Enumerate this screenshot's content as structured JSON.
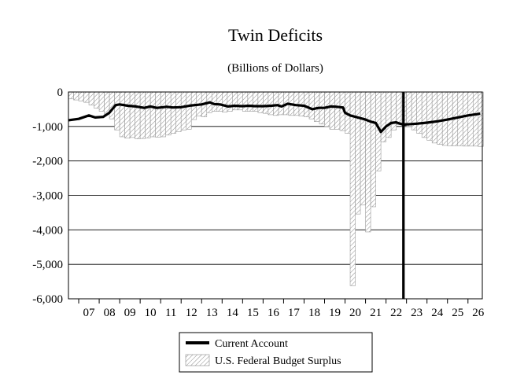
{
  "chart_data": {
    "type": "bar",
    "title": "Twin Deficits",
    "subtitle": "(Billions of Dollars)",
    "xlabel": "",
    "ylabel": "",
    "ylim": [
      -6000,
      0
    ],
    "yticks": [
      0,
      -1000,
      -2000,
      -3000,
      -4000,
      -5000,
      -6000
    ],
    "ytick_labels": [
      "0",
      "-1,000",
      "-2,000",
      "-3,000",
      "-4,000",
      "-5,000",
      "-6,000"
    ],
    "xlim": [
      2006.5,
      2026.7
    ],
    "xtick_labels": [
      "07",
      "08",
      "09",
      "10",
      "11",
      "12",
      "13",
      "14",
      "15",
      "16",
      "17",
      "18",
      "19",
      "20",
      "21",
      "22",
      "23",
      "24",
      "25",
      "26"
    ],
    "grid": true,
    "legend_position": "bottom-center",
    "annotations": [
      {
        "type": "vertical-line",
        "x": 2022.85
      }
    ],
    "series": [
      {
        "name": "Current Account",
        "style": "line",
        "color": "#000000",
        "x": [
          2006.5,
          2007.0,
          2007.5,
          2007.8,
          2008.2,
          2008.5,
          2008.8,
          2009.0,
          2009.4,
          2009.8,
          2010.2,
          2010.5,
          2010.8,
          2011.0,
          2011.3,
          2011.6,
          2012.0,
          2012.5,
          2013.0,
          2013.4,
          2013.6,
          2013.9,
          2014.3,
          2014.6,
          2015.0,
          2015.3,
          2015.6,
          2016.0,
          2016.4,
          2016.7,
          2016.9,
          2017.2,
          2017.6,
          2018.0,
          2018.4,
          2018.7,
          2019.0,
          2019.3,
          2019.6,
          2019.9,
          2020.0,
          2020.25,
          2020.5,
          2020.75,
          2021.0,
          2021.25,
          2021.5,
          2021.75,
          2022.0,
          2022.25,
          2022.5,
          2022.85,
          2023.0,
          2023.5,
          2024.0,
          2024.5,
          2025.0,
          2025.5,
          2026.0,
          2026.6
        ],
        "values": [
          -820,
          -780,
          -680,
          -740,
          -720,
          -600,
          -380,
          -360,
          -400,
          -420,
          -460,
          -420,
          -460,
          -450,
          -430,
          -450,
          -440,
          -390,
          -360,
          -300,
          -350,
          -360,
          -420,
          -400,
          -410,
          -400,
          -410,
          -410,
          -400,
          -380,
          -420,
          -340,
          -380,
          -400,
          -500,
          -460,
          -460,
          -420,
          -430,
          -450,
          -600,
          -680,
          -720,
          -760,
          -800,
          -860,
          -900,
          -1160,
          -1000,
          -900,
          -880,
          -950,
          -940,
          -920,
          -890,
          -850,
          -800,
          -740,
          -680,
          -630
        ]
      },
      {
        "name": "U.S. Federal Budget Surplus",
        "style": "hatched-bar",
        "color": "#9a9a9a",
        "x": [
          2006.5,
          2006.75,
          2007.0,
          2007.25,
          2007.5,
          2007.75,
          2008.0,
          2008.25,
          2008.5,
          2008.75,
          2009.0,
          2009.25,
          2009.5,
          2009.75,
          2010.0,
          2010.25,
          2010.5,
          2010.75,
          2011.0,
          2011.25,
          2011.5,
          2011.75,
          2012.0,
          2012.25,
          2012.5,
          2012.75,
          2013.0,
          2013.25,
          2013.5,
          2013.75,
          2014.0,
          2014.25,
          2014.5,
          2014.75,
          2015.0,
          2015.25,
          2015.5,
          2015.75,
          2016.0,
          2016.25,
          2016.5,
          2016.75,
          2017.0,
          2017.25,
          2017.5,
          2017.75,
          2018.0,
          2018.25,
          2018.5,
          2018.75,
          2019.0,
          2019.25,
          2019.5,
          2019.75,
          2020.0,
          2020.25,
          2020.5,
          2020.75,
          2021.0,
          2021.25,
          2021.5,
          2021.75,
          2022.0,
          2022.25,
          2022.5,
          2022.75,
          2023.0,
          2023.25,
          2023.5,
          2023.75,
          2024.0,
          2024.25,
          2024.5,
          2024.75,
          2025.0,
          2025.25,
          2025.5,
          2025.75,
          2026.0,
          2026.25,
          2026.5
        ],
        "values": [
          -200,
          -230,
          -260,
          -300,
          -380,
          -470,
          -560,
          -650,
          -780,
          -1100,
          -1300,
          -1340,
          -1320,
          -1360,
          -1350,
          -1330,
          -1300,
          -1310,
          -1300,
          -1250,
          -1200,
          -1150,
          -1100,
          -1080,
          -800,
          -700,
          -720,
          -600,
          -560,
          -560,
          -580,
          -560,
          -520,
          -520,
          -560,
          -560,
          -560,
          -600,
          -620,
          -660,
          -680,
          -660,
          -660,
          -680,
          -680,
          -700,
          -720,
          -780,
          -860,
          -930,
          -1000,
          -1080,
          -1080,
          -1120,
          -1200,
          -5620,
          -3540,
          -3280,
          -4060,
          -3330,
          -2290,
          -1450,
          -1320,
          -1100,
          -950,
          -900,
          -1000,
          -1100,
          -1200,
          -1320,
          -1400,
          -1480,
          -1520,
          -1550,
          -1560,
          -1560,
          -1560,
          -1570,
          -1570,
          -1570,
          -1580
        ]
      }
    ]
  },
  "legend": {
    "items": [
      {
        "label": "Current Account"
      },
      {
        "label": "U.S. Federal Budget Surplus"
      }
    ]
  }
}
